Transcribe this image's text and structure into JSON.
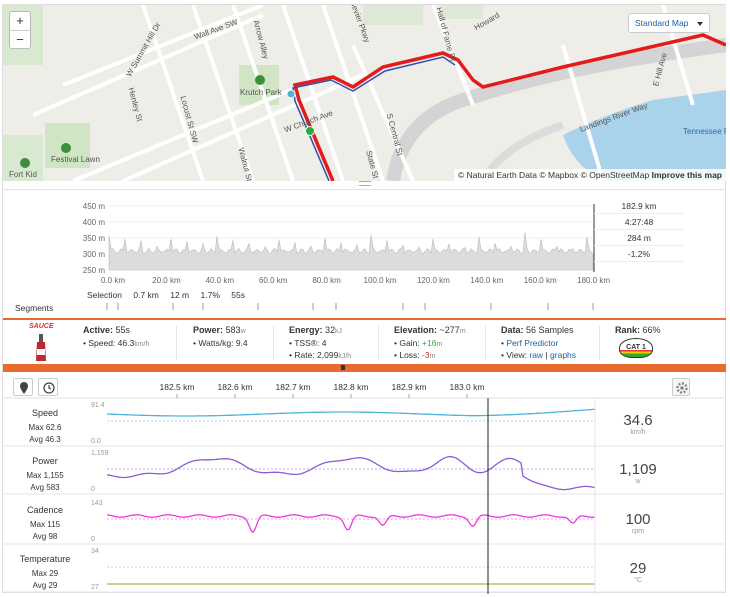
{
  "map": {
    "zoom_in": "+",
    "zoom_out": "−",
    "style_select": "Standard Map",
    "attribution": "© Natural Earth Data © Mapbox © OpenStreetMap",
    "improve": "Improve this map",
    "labels": [
      "Wall Ave SW",
      "W Summit Hill Dr",
      "Henley St",
      "Krutch Park",
      "W Church Ave",
      "Locust St SW",
      "Walnut St",
      "State St",
      "S Central St",
      "Hall of Fame Dr",
      "Howard",
      "E Hill Ave",
      "Landings River Way",
      "Tennessee Rive",
      "Festival Lawn",
      "Fort Kid",
      "Arrow Alley",
      "Sevier Pkwy"
    ]
  },
  "elevation": {
    "y_ticks": [
      "450 m",
      "400 m",
      "350 m",
      "300 m",
      "250 m"
    ],
    "x_ticks": [
      "0.0 km",
      "20.0 km",
      "40.0 km",
      "60.0 km",
      "80.0 km",
      "100.0 km",
      "120.0 km",
      "140.0 km",
      "160.0 km",
      "180.0 km"
    ],
    "readout": [
      "182.9 km",
      "4:27:48",
      "284 m",
      "-1.2%"
    ],
    "selection": {
      "label": "Selection",
      "distance": "0.7 km",
      "elev": "12 m",
      "grade": "1.7%",
      "time": "55s"
    }
  },
  "segments_label": "Segments",
  "stats": {
    "logo": "SAUCE",
    "active": {
      "title": "Active:",
      "value": "55s",
      "speed_label": "Speed:",
      "speed": "46.3",
      "speed_unit": "km/h"
    },
    "power": {
      "title": "Power:",
      "value": "583",
      "unit": "w",
      "wkg_label": "Watts/kg:",
      "wkg": "9.4"
    },
    "energy": {
      "title": "Energy:",
      "value": "32",
      "unit": "kJ",
      "tss_label": "TSS®:",
      "tss": "4",
      "rate_label": "Rate:",
      "rate": "2,099",
      "rate_unit": "kJ/h"
    },
    "elevation": {
      "title": "Elevation:",
      "value": "~277",
      "unit": "m",
      "gain_label": "Gain:",
      "gain": "+16",
      "gain_unit": "m",
      "loss_label": "Loss:",
      "loss": "-3",
      "loss_unit": "m"
    },
    "data": {
      "title": "Data:",
      "value": "56 Samples",
      "predictor": "Perf Predictor",
      "view_label": "View:",
      "raw": "raw",
      "sep": "|",
      "graphs": "graphs"
    },
    "rank": {
      "title": "Rank:",
      "value": "66%",
      "badge": "CAT 1"
    }
  },
  "streams": {
    "x_ticks": [
      "182.5 km",
      "182.6 km",
      "182.7 km",
      "182.8 km",
      "182.9 km",
      "183.0 km"
    ],
    "rows": [
      {
        "name": "Speed",
        "max": "Max 62.6",
        "avg": "Avg 46.3",
        "ytop": "91.4",
        "ybot": "0.0",
        "value": "34.6",
        "unit": "km/h",
        "color": "#4fb3d9"
      },
      {
        "name": "Power",
        "max": "Max 1,155",
        "avg": "Avg 583",
        "ytop": "1,159",
        "ybot": "0",
        "value": "1,109",
        "unit": "w",
        "color": "#8a5cd6"
      },
      {
        "name": "Cadence",
        "max": "Max 115",
        "avg": "Avg 98",
        "ytop": "143",
        "ybot": "0",
        "value": "100",
        "unit": "rpm",
        "color": "#e83be0"
      },
      {
        "name": "Temperature",
        "max": "Max 29",
        "avg": "Avg 29",
        "ytop": "34",
        "ybot": "27",
        "value": "29",
        "unit": "°C",
        "color": "#a8b84a"
      }
    ]
  }
}
